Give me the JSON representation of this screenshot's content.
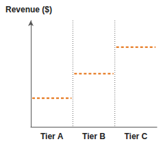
{
  "chart_data": {
    "type": "line",
    "y_label": "Revenue ($)",
    "categories": [
      "Tier A",
      "Tier B",
      "Tier C"
    ],
    "values": [
      27,
      50,
      75
    ],
    "color": "#e46c0a",
    "line_style": "dashed",
    "ylim": [
      0,
      100
    ],
    "tick_labels": "x"
  }
}
